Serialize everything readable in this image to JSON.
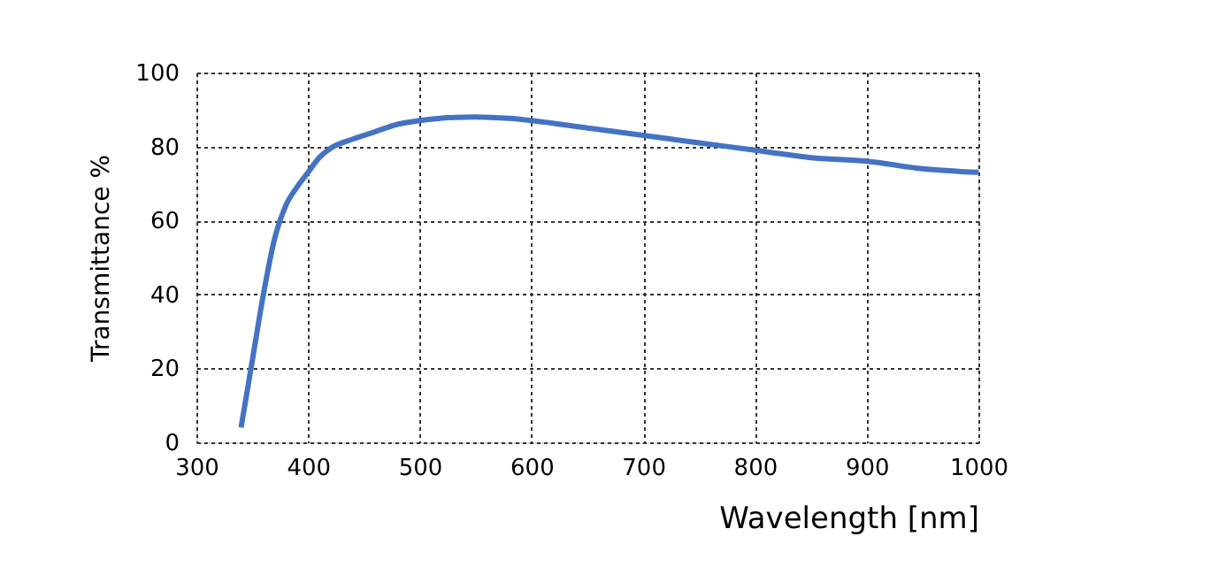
{
  "chart_data": {
    "type": "line",
    "xlabel": "Wavelength [nm]",
    "ylabel": "Transmittance %",
    "x": [
      340,
      350,
      360,
      370,
      380,
      390,
      400,
      410,
      420,
      440,
      460,
      480,
      500,
      520,
      550,
      580,
      600,
      650,
      700,
      750,
      800,
      850,
      900,
      950,
      1000
    ],
    "series": [
      {
        "color": "#4472c4",
        "values": [
          4,
          22,
          40,
          55,
          64,
          69,
          73,
          77,
          79.5,
          82,
          84,
          86,
          87,
          87.7,
          88,
          87.6,
          87,
          85,
          83,
          81,
          79,
          77,
          76,
          74,
          73
        ]
      }
    ],
    "xlim": [
      300,
      1000
    ],
    "xticks": [
      300,
      400,
      500,
      600,
      700,
      800,
      900,
      1000
    ],
    "ylim": [
      0,
      100
    ],
    "yticks": [
      0,
      20,
      40,
      60,
      80,
      100
    ],
    "grid": true,
    "line_style": "solid",
    "marker": "none"
  }
}
